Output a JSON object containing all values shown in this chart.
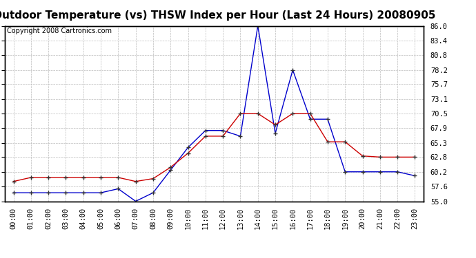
{
  "title": "Outdoor Temperature (vs) THSW Index per Hour (Last 24 Hours) 20080905",
  "copyright": "Copyright 2008 Cartronics.com",
  "hours": [
    "00:00",
    "01:00",
    "02:00",
    "03:00",
    "04:00",
    "05:00",
    "06:00",
    "07:00",
    "08:00",
    "09:00",
    "10:00",
    "11:00",
    "12:00",
    "13:00",
    "14:00",
    "15:00",
    "16:00",
    "17:00",
    "18:00",
    "19:00",
    "20:00",
    "21:00",
    "22:00",
    "23:00"
  ],
  "temp_red": [
    58.5,
    59.2,
    59.2,
    59.2,
    59.2,
    59.2,
    59.2,
    58.5,
    59.0,
    61.0,
    63.5,
    66.5,
    66.5,
    70.5,
    70.5,
    68.5,
    70.5,
    70.5,
    65.5,
    65.5,
    63.0,
    62.8,
    62.8,
    62.8
  ],
  "thsw_blue": [
    56.5,
    56.5,
    56.5,
    56.5,
    56.5,
    56.5,
    57.2,
    55.0,
    56.5,
    60.5,
    64.5,
    67.5,
    67.5,
    66.5,
    86.0,
    67.0,
    78.2,
    69.5,
    69.5,
    60.2,
    60.2,
    60.2,
    60.2,
    59.5
  ],
  "ylim": [
    55.0,
    86.0
  ],
  "yticks": [
    55.0,
    57.6,
    60.2,
    62.8,
    65.3,
    67.9,
    70.5,
    73.1,
    75.7,
    78.2,
    80.8,
    83.4,
    86.0
  ],
  "red_color": "#cc0000",
  "blue_color": "#0000cc",
  "grid_color": "#bbbbbb",
  "bg_color": "#ffffff",
  "title_fontsize": 11,
  "copyright_fontsize": 7,
  "tick_fontsize": 7.5,
  "marker_size": 5,
  "marker_color": "#333333"
}
